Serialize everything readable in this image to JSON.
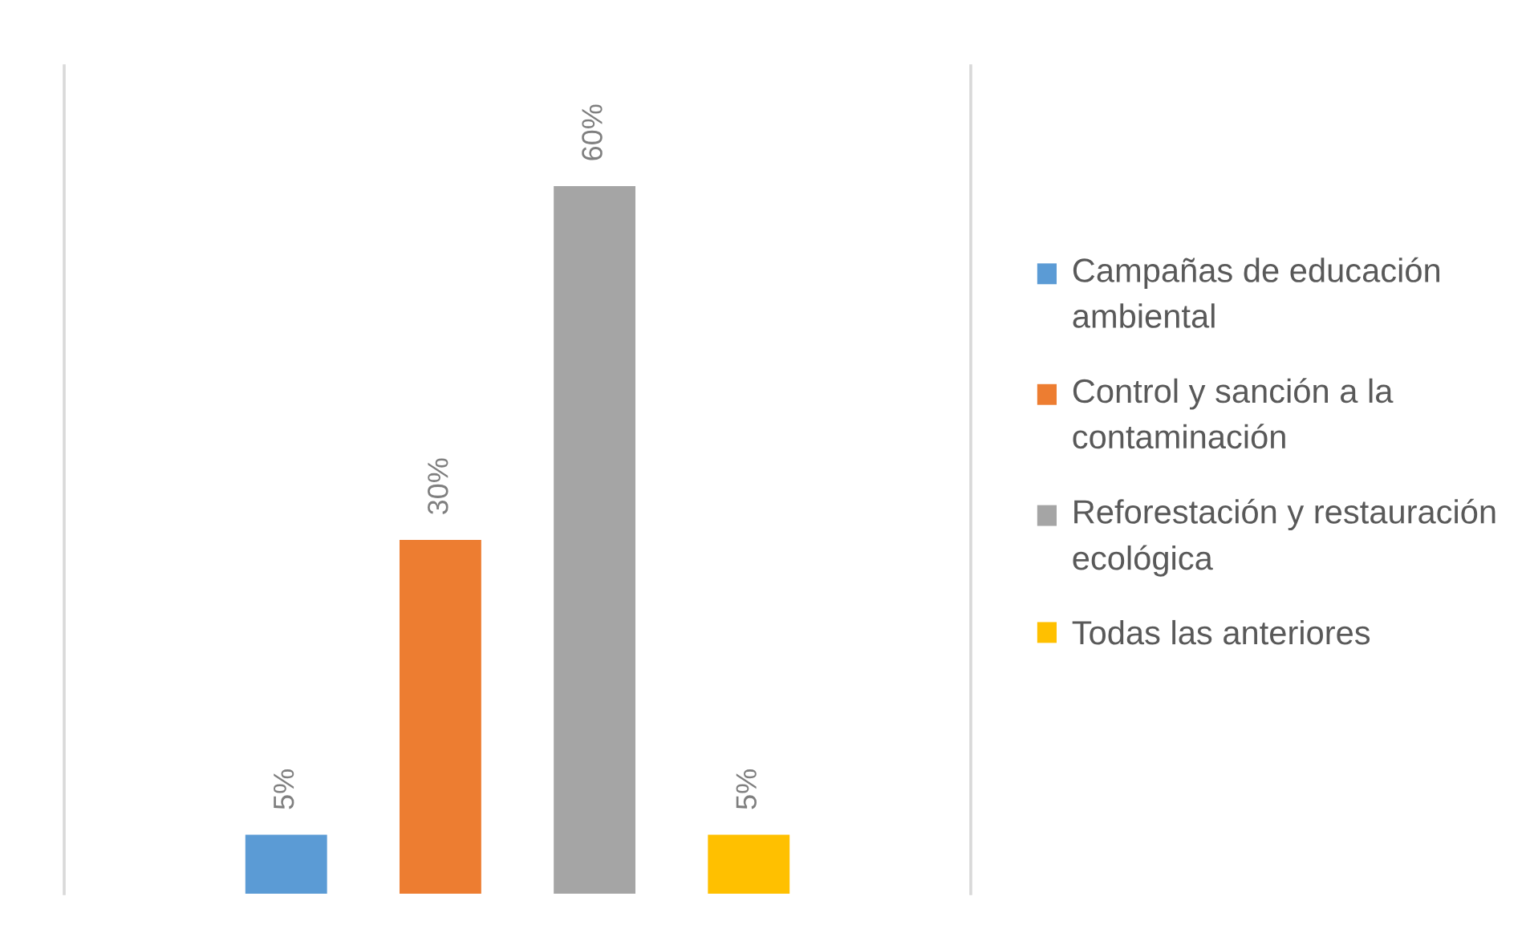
{
  "chart_data": {
    "type": "bar",
    "categories": [
      null,
      null,
      null,
      null
    ],
    "stacked": true,
    "series": [
      {
        "name": "Campañas de educación ambiental",
        "color": "#5b9bd5",
        "values": [
          5,
          null,
          null,
          null
        ],
        "value_labels": [
          "5%",
          null,
          null,
          null
        ]
      },
      {
        "name": "Control y sanción a la contaminación",
        "color": "#ed7d31",
        "values": [
          null,
          30,
          null,
          null
        ],
        "value_labels": [
          null,
          "30%",
          null,
          null
        ]
      },
      {
        "name": "Reforestación y restauración ecológica",
        "color": "#a5a5a5",
        "values": [
          null,
          null,
          60,
          null
        ],
        "value_labels": [
          null,
          null,
          "60%",
          null
        ]
      },
      {
        "name": "Todas las anteriores",
        "color": "#ffc000",
        "values": [
          null,
          null,
          null,
          5
        ],
        "value_labels": [
          null,
          null,
          null,
          "5%"
        ]
      }
    ],
    "legend": "right"
  }
}
